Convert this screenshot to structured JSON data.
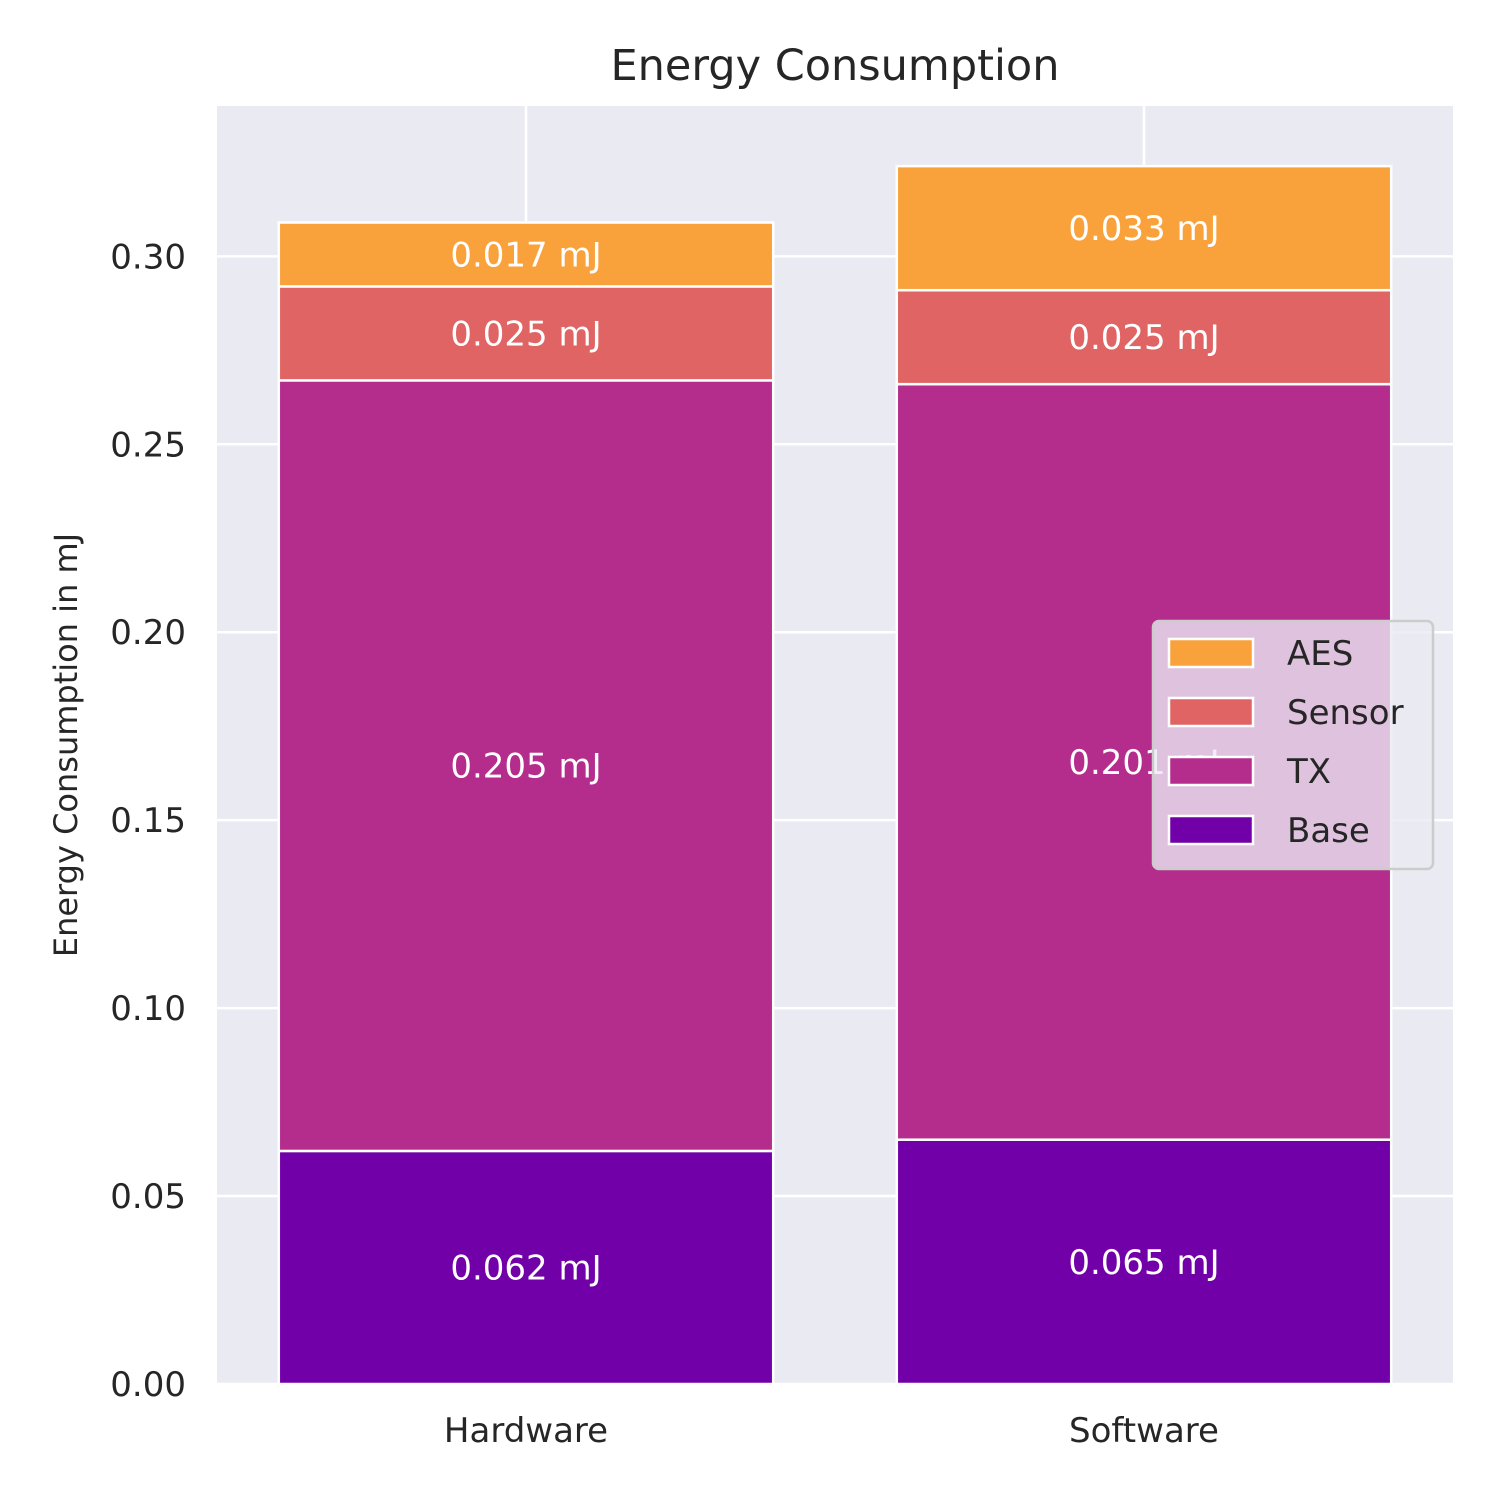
{
  "chart_data": {
    "type": "bar",
    "stacked": true,
    "title": "Energy Consumption",
    "xlabel": "",
    "ylabel": "Energy Consumption in mJ",
    "categories": [
      "Hardware",
      "Software"
    ],
    "ylim": [
      0,
      0.34
    ],
    "yticks": [
      "0.00",
      "0.05",
      "0.10",
      "0.15",
      "0.20",
      "0.25",
      "0.30"
    ],
    "grid": true,
    "legend_position": "center-right",
    "series": [
      {
        "name": "Base",
        "color": "#7100a8",
        "values": [
          0.062,
          0.065
        ],
        "labels": [
          "0.062 mJ",
          "0.065 mJ"
        ]
      },
      {
        "name": "TX",
        "color": "#b42c8c",
        "values": [
          0.205,
          0.201
        ],
        "labels": [
          "0.205 mJ",
          "0.201 mJ"
        ]
      },
      {
        "name": "Sensor",
        "color": "#e06464",
        "values": [
          0.025,
          0.025
        ],
        "labels": [
          "0.025 mJ",
          "0.025 mJ"
        ]
      },
      {
        "name": "AES",
        "color": "#f9a23c",
        "values": [
          0.017,
          0.033
        ],
        "labels": [
          "0.017 mJ",
          "0.033 mJ"
        ]
      }
    ],
    "legend_order": [
      "AES",
      "Sensor",
      "TX",
      "Base"
    ]
  }
}
